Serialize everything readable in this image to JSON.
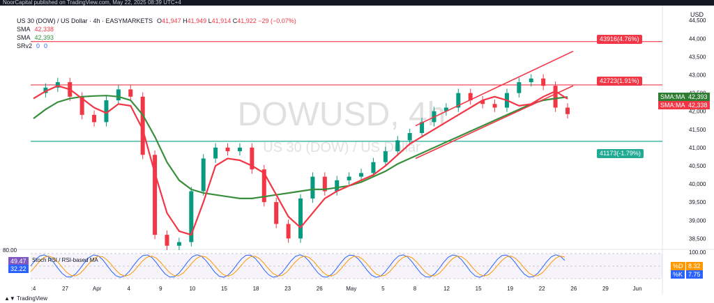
{
  "topbar": {
    "text": "NoorCapital published on TradingView.com, May 22, 2025 08:39 UTC+4"
  },
  "header": {
    "symbol": "US 30 (DOW) / US Dollar · 4h · EASYMARKETS",
    "open_label": "O",
    "open": "41,947",
    "high_label": "H",
    "high": "41,949",
    "low_label": "L",
    "low": "41,914",
    "close_label": "C",
    "close": "41,922",
    "change": "−29 (−0.07%)",
    "sma1_label": "SMA",
    "sma1": "42,338",
    "sma2_label": "SMA",
    "sma2": "42,393",
    "srv_label": "SRv2",
    "srv_a": "0",
    "srv_b": "0"
  },
  "watermark": {
    "big": "DOWUSD, 4h",
    "small": "US 30 (DOW) / US Dollar"
  },
  "currency": "USD",
  "levels": [
    {
      "value": 43916,
      "label": "43916(4.76%)",
      "color": "#f23645"
    },
    {
      "value": 42723,
      "label": "42723(1.91%)",
      "color": "#f23645"
    },
    {
      "value": 41173,
      "label": "41173(-1.79%)",
      "color": "#22ab94"
    }
  ],
  "price_badges": [
    {
      "name": "SMA:MA",
      "value": "42,393",
      "color": "#2e7d32"
    },
    {
      "name": "SMA:MA",
      "value": "42,338",
      "color": "#f23645"
    }
  ],
  "rsi": {
    "label": "Stoch RSI / RSI-based MA",
    "top_value": "80.00",
    "rsi_value": "49.47",
    "ma_value": "32.22",
    "d_label": "%D",
    "d_value": "8.32",
    "k_label": "%K",
    "k_value": "7.75",
    "scale_top": "100.00"
  },
  "bottom": {
    "brand": "TradingView"
  },
  "chart_data": {
    "type": "line",
    "title": "DOWUSD, 4h",
    "ylabel": "USD",
    "ylim": [
      38200,
      44600
    ],
    "yticks": [
      44500,
      44000,
      43500,
      43000,
      42500,
      42000,
      41500,
      41000,
      40500,
      40000,
      39500,
      39000,
      38500
    ],
    "x_labels": [
      ":4",
      "27",
      "Apr",
      "4",
      "9",
      "10",
      "15",
      "18",
      "23",
      "26",
      "May",
      "5",
      "8",
      "12",
      "15",
      "19",
      "22",
      "26",
      "29",
      "Jun"
    ],
    "series": [
      {
        "name": "SMA",
        "color": "#f23645",
        "values": [
          42350,
          42550,
          42700,
          42600,
          42350,
          42100,
          41950,
          42200,
          42150,
          41500,
          40300,
          39200,
          38700,
          38600,
          39500,
          40500,
          40700,
          40650,
          40500,
          40300,
          39700,
          39100,
          38800,
          39200,
          39600,
          39800,
          39950,
          40100,
          40250,
          40500,
          40800,
          41100,
          41300,
          41500,
          41700,
          41900,
          42100,
          42300,
          42400,
          42300,
          42150,
          42200,
          42400,
          42550,
          42338
        ]
      },
      {
        "name": "SMA",
        "color": "#388e3c",
        "values": [
          41800,
          42050,
          42250,
          42350,
          42400,
          42420,
          42430,
          42400,
          42300,
          41900,
          41300,
          40600,
          40100,
          39850,
          39750,
          39700,
          39650,
          39600,
          39600,
          39650,
          39700,
          39750,
          39800,
          39850,
          39850,
          39900,
          39950,
          40050,
          40200,
          40350,
          40550,
          40700,
          40850,
          41000,
          41150,
          41300,
          41450,
          41600,
          41750,
          41900,
          42050,
          42200,
          42300,
          42350,
          42393
        ]
      },
      {
        "name": "DOWUSD",
        "color": "#089981",
        "values": [
          42500,
          42650,
          42800,
          42400,
          41900,
          41700,
          42300,
          42600,
          42400,
          40800,
          38600,
          38300,
          38400,
          39800,
          40700,
          41000,
          40900,
          41000,
          40400,
          39500,
          38900,
          38500,
          39600,
          40200,
          39800,
          40100,
          40200,
          40300,
          40600,
          40900,
          41200,
          41400,
          41700,
          42000,
          42100,
          42500,
          42300,
          42200,
          42100,
          42500,
          42800,
          42900,
          42700,
          42100,
          41922
        ]
      }
    ]
  }
}
